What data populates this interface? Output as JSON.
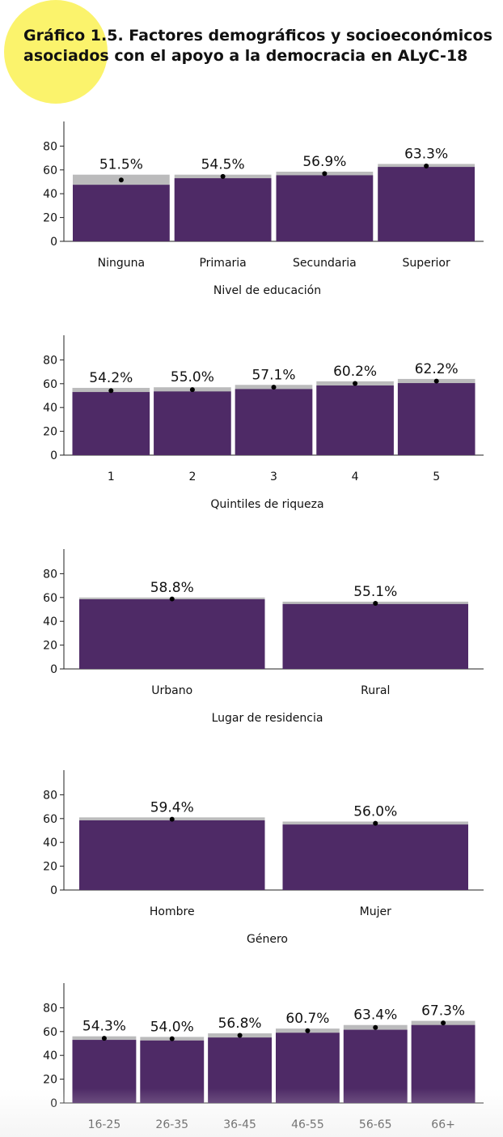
{
  "header": {
    "title": "Gráfico 1.5. Factores demográficos y socioeconómicos asociados con el apoyo a la democracia en ALyC-18"
  },
  "colors": {
    "bar": "#4e2a66",
    "ci": "#bbbbbc",
    "accent_circle": "#fbf36c"
  },
  "chart_data": [
    {
      "type": "bar",
      "xlabel": "Nivel de educación",
      "categories": [
        "Ninguna",
        "Primaria",
        "Secundaria",
        "Superior"
      ],
      "values": [
        51.5,
        54.5,
        56.9,
        63.3
      ],
      "data_labels": [
        "51.5%",
        "54.5%",
        "56.9%",
        "63.3%"
      ],
      "ci_low": [
        47.5,
        53.0,
        55.5,
        62.5
      ],
      "ci_high": [
        56.0,
        56.0,
        58.5,
        65.0
      ],
      "yticks": [
        0,
        20,
        40,
        60,
        80
      ],
      "ylim": [
        0,
        100
      ]
    },
    {
      "type": "bar",
      "xlabel": "Quintiles de riqueza",
      "categories": [
        "1",
        "2",
        "3",
        "4",
        "5"
      ],
      "values": [
        54.2,
        55.0,
        57.1,
        60.2,
        62.2
      ],
      "data_labels": [
        "54.2%",
        "55.0%",
        "57.1%",
        "60.2%",
        "62.2%"
      ],
      "ci_low": [
        53.0,
        53.5,
        55.5,
        58.5,
        60.5
      ],
      "ci_high": [
        56.5,
        57.0,
        59.0,
        62.0,
        64.0
      ],
      "yticks": [
        0,
        20,
        40,
        60,
        80
      ],
      "ylim": [
        0,
        100
      ]
    },
    {
      "type": "bar",
      "xlabel": "Lugar de residencia",
      "categories": [
        "Urbano",
        "Rural"
      ],
      "values": [
        58.8,
        55.1
      ],
      "data_labels": [
        "58.8%",
        "55.1%"
      ],
      "ci_low": [
        58.5,
        54.5
      ],
      "ci_high": [
        60.0,
        56.5
      ],
      "yticks": [
        0,
        20,
        40,
        60,
        80
      ],
      "ylim": [
        0,
        100
      ]
    },
    {
      "type": "bar",
      "xlabel": "Género",
      "categories": [
        "Hombre",
        "Mujer"
      ],
      "values": [
        59.4,
        56.0
      ],
      "data_labels": [
        "59.4%",
        "56.0%"
      ],
      "ci_low": [
        58.5,
        55.0
      ],
      "ci_high": [
        61.0,
        57.5
      ],
      "yticks": [
        0,
        20,
        40,
        60,
        80
      ],
      "ylim": [
        0,
        100
      ]
    },
    {
      "type": "bar",
      "xlabel": "",
      "categories": [
        "16-25",
        "26-35",
        "36-45",
        "46-55",
        "56-65",
        "66+"
      ],
      "values": [
        54.3,
        54.0,
        56.8,
        60.7,
        63.4,
        67.3
      ],
      "data_labels": [
        "54.3%",
        "54.0%",
        "56.8%",
        "60.7%",
        "63.4%",
        "67.3%"
      ],
      "ci_low": [
        53.0,
        52.5,
        55.0,
        59.0,
        61.5,
        65.5
      ],
      "ci_high": [
        56.0,
        55.5,
        58.5,
        62.5,
        65.5,
        69.0
      ],
      "yticks": [
        0,
        20,
        40,
        60,
        80
      ],
      "ylim": [
        0,
        100
      ]
    }
  ]
}
